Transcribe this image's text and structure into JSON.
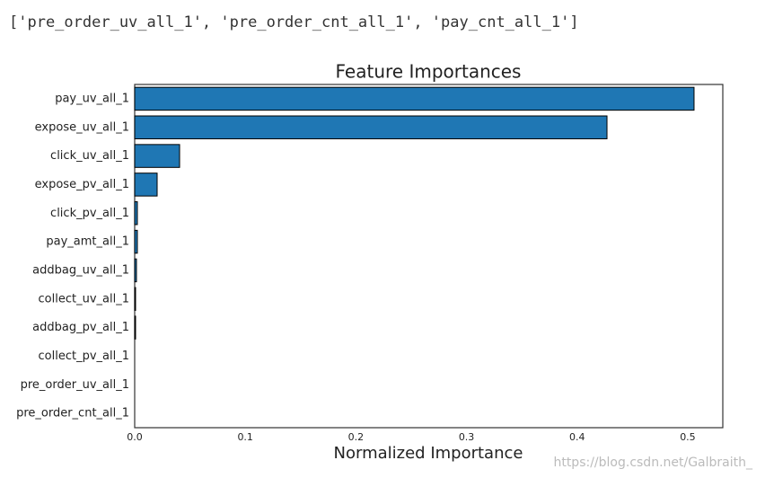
{
  "output_text": "['pre_order_uv_all_1', 'pre_order_cnt_all_1', 'pay_cnt_all_1']",
  "watermark": "https://blog.csdn.net/Galbraith_",
  "chart_data": {
    "type": "barh",
    "title": "Feature Importances",
    "x_label": "Normalized Importance",
    "categories": [
      "pay_uv_all_1",
      "expose_uv_all_1",
      "click_uv_all_1",
      "expose_pv_all_1",
      "click_pv_all_1",
      "pay_amt_all_1",
      "addbag_uv_all_1",
      "collect_uv_all_1",
      "addbag_pv_all_1",
      "collect_pv_all_1",
      "pre_order_uv_all_1",
      "pre_order_cnt_all_1"
    ],
    "values": [
      0.5057,
      0.427,
      0.0406,
      0.0203,
      0.0024,
      0.0024,
      0.0016,
      0.0008,
      0.0008,
      0,
      0,
      0
    ],
    "color": "#1f77b4",
    "edge_color": "#000000",
    "xlim": [
      0,
      0.5317
    ],
    "xticks": [
      {
        "value": 0,
        "label": "0.0"
      },
      0.1,
      0.2,
      0.3,
      0.4,
      0.5
    ],
    "grid": false
  }
}
